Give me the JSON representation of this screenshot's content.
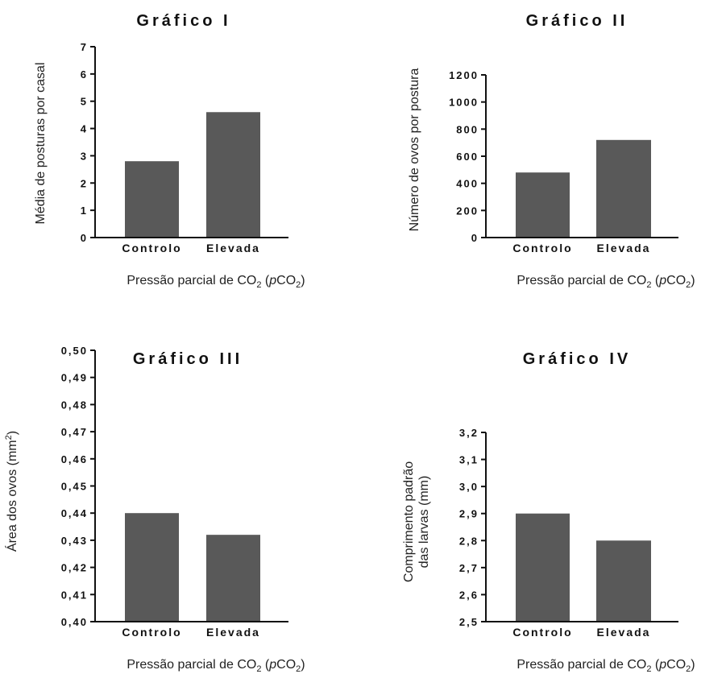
{
  "chart_data": [
    {
      "type": "bar",
      "title": "Gráfico I",
      "ylabel": "Média de posturas por casal",
      "xlabel": {
        "prefix": "Pressão parcial de CO",
        "sub1": "2",
        "mid": " (",
        "italic": "p",
        "mid2": "CO",
        "sub2": "2",
        "suffix": ")"
      },
      "categories": [
        "Controlo",
        "Elevada"
      ],
      "values": [
        2.8,
        4.6
      ],
      "ylim": [
        0,
        7
      ],
      "yticks": [
        "0",
        "1",
        "2",
        "3",
        "4",
        "5",
        "6",
        "7"
      ],
      "grid": false
    },
    {
      "type": "bar",
      "title": "Gráfico II",
      "ylabel": "Número de ovos por postura",
      "xlabel": {
        "prefix": "Pressão parcial de CO",
        "sub1": "2",
        "mid": " (",
        "italic": "p",
        "mid2": "CO",
        "sub2": "2",
        "suffix": ")"
      },
      "categories": [
        "Controlo",
        "Elevada"
      ],
      "values": [
        480,
        720
      ],
      "ylim": [
        0,
        1200
      ],
      "yticks": [
        "0",
        "200",
        "400",
        "600",
        "800",
        "1000",
        "1200"
      ],
      "grid": false
    },
    {
      "type": "bar",
      "title": "Gráfico III",
      "ylabel": {
        "prefix": "Área dos ovos (mm",
        "sup": "2",
        "suffix": ")"
      },
      "xlabel": {
        "prefix": "Pressão parcial de CO",
        "sub1": "2",
        "mid": " (",
        "italic": "p",
        "mid2": "CO",
        "sub2": "2",
        "suffix": ")"
      },
      "categories": [
        "Controlo",
        "Elevada"
      ],
      "values": [
        0.44,
        0.432
      ],
      "ylim": [
        0.4,
        0.5
      ],
      "yticks": [
        "0,40",
        "0,41",
        "0,42",
        "0,43",
        "0,44",
        "0,45",
        "0,46",
        "0,47",
        "0,48",
        "0,49",
        "0,50"
      ],
      "grid": false
    },
    {
      "type": "bar",
      "title": "Gráfico IV",
      "ylabel": [
        "Comprimento padrão",
        "das larvas (mm)"
      ],
      "xlabel": {
        "prefix": "Pressão parcial de CO",
        "sub1": "2",
        "mid": " (",
        "italic": "p",
        "mid2": "CO",
        "sub2": "2",
        "suffix": ")"
      },
      "categories": [
        "Controlo",
        "Elevada"
      ],
      "values": [
        2.9,
        2.8
      ],
      "ylim": [
        2.5,
        3.2
      ],
      "yticks": [
        "2,5",
        "2,6",
        "2,7",
        "2,8",
        "2,9",
        "3,0",
        "3,1",
        "3,2"
      ],
      "grid": false
    }
  ]
}
